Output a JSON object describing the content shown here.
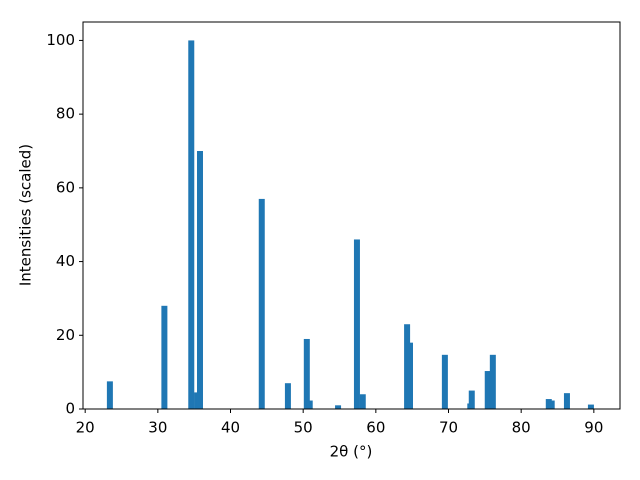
{
  "chart_data": {
    "type": "bar",
    "x_label": "2θ (°)",
    "y_label": "Intensities (scaled)",
    "color": "#1f77b4",
    "x": [
      23.4,
      30.9,
      34.6,
      35.4,
      35.8,
      44.3,
      47.9,
      50.5,
      50.9,
      54.8,
      57.4,
      58.2,
      64.3,
      64.7,
      69.5,
      73.0,
      73.2,
      75.4,
      76.1,
      83.8,
      84.2,
      86.3,
      89.6
    ],
    "values": [
      7.5,
      28,
      100,
      4.5,
      70,
      57,
      7,
      19,
      2.3,
      1,
      46,
      4,
      23,
      18,
      14.7,
      1.5,
      5,
      10.3,
      14.7,
      2.7,
      2.3,
      4.3,
      1.2
    ],
    "xlim": [
      19.7,
      93.6
    ],
    "ylim": [
      0,
      105
    ],
    "xticks": [
      20,
      30,
      40,
      50,
      60,
      70,
      80,
      90
    ],
    "yticks": [
      0,
      20,
      40,
      60,
      80,
      100
    ]
  }
}
